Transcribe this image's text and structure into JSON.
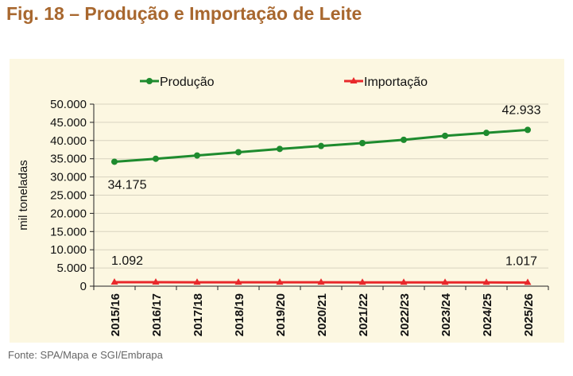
{
  "title": "Fig. 18 – Produção e Importação de Leite",
  "source": "Fonte: SPA/Mapa e SGI/Embrapa",
  "chart_data": {
    "type": "line",
    "title": "Fig. 18 – Produção e Importação de Leite",
    "xlabel": "",
    "ylabel": "mil toneladas",
    "ylim": [
      0,
      50000
    ],
    "yticks": [
      0,
      5000,
      10000,
      15000,
      20000,
      25000,
      30000,
      35000,
      40000,
      45000,
      50000
    ],
    "ytick_labels": [
      "0",
      "5.000",
      "10.000",
      "15.000",
      "20.000",
      "25.000",
      "30.000",
      "35.000",
      "40.000",
      "45.000",
      "50.000"
    ],
    "grid": true,
    "legend": "top",
    "categories": [
      "2015/16",
      "2016/17",
      "2017/18",
      "2018/19",
      "2019/20",
      "2020/21",
      "2021/22",
      "2022/23",
      "2023/24",
      "2024/25",
      "2025/26"
    ],
    "series": [
      {
        "name": "Produção",
        "color": "#1E8B2E",
        "marker": "circle",
        "values": [
          34175,
          35000,
          35900,
          36800,
          37700,
          38500,
          39300,
          40200,
          41300,
          42100,
          42933
        ]
      },
      {
        "name": "Importação",
        "color": "#E8282B",
        "marker": "triangle",
        "values": [
          1092,
          1085,
          1078,
          1070,
          1063,
          1056,
          1048,
          1040,
          1032,
          1025,
          1017
        ]
      }
    ],
    "annotations": [
      {
        "series": 0,
        "index": 0,
        "text": "34.175",
        "pos": "below"
      },
      {
        "series": 0,
        "index": 10,
        "text": "42.933",
        "pos": "above"
      },
      {
        "series": 1,
        "index": 0,
        "text": "1.092",
        "pos": "above"
      },
      {
        "series": 1,
        "index": 10,
        "text": "1.017",
        "pos": "above"
      }
    ]
  }
}
